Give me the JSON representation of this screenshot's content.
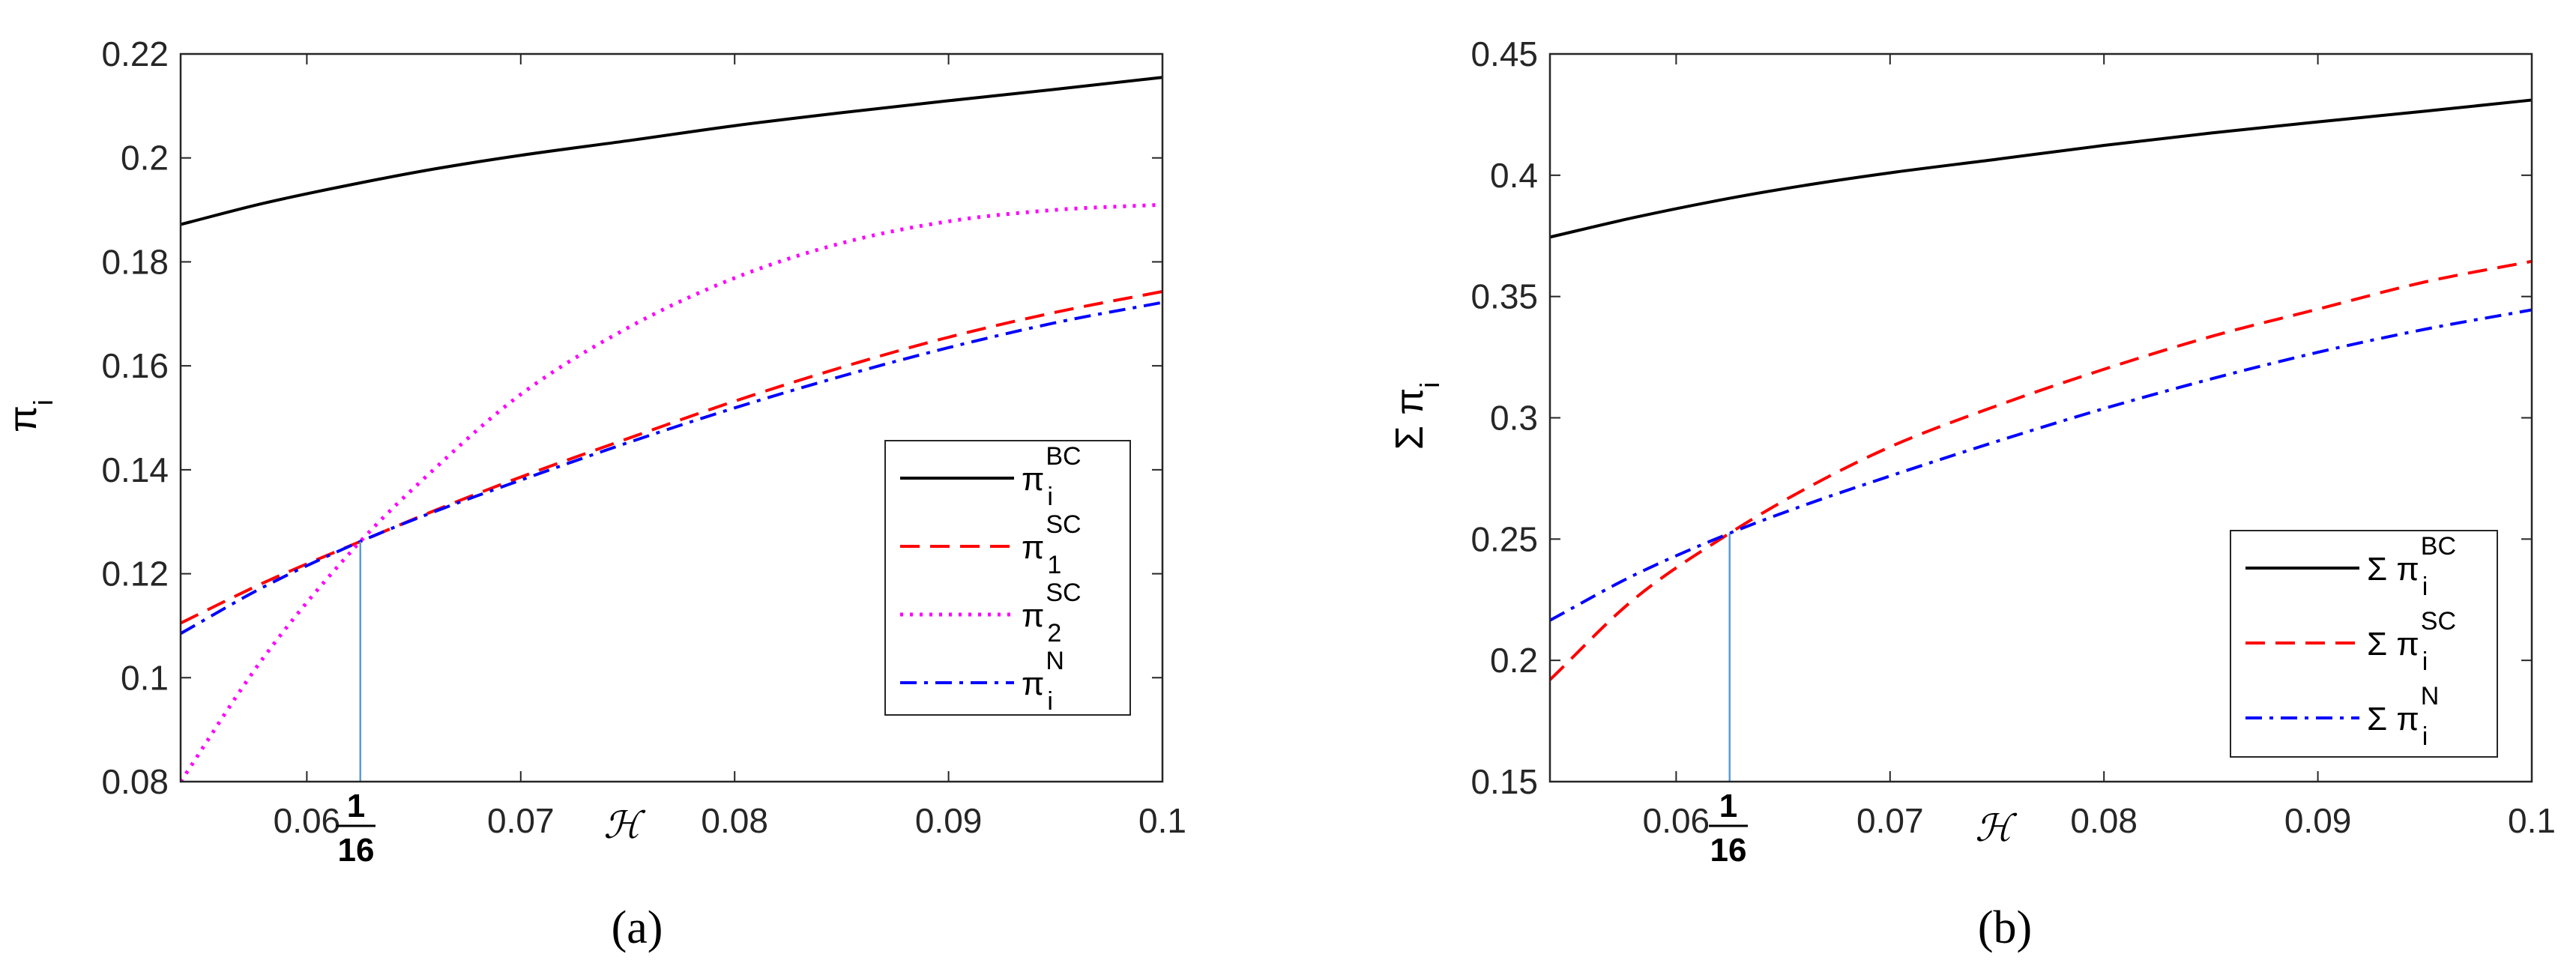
{
  "figure": {
    "captions": [
      "(a)",
      "(b)"
    ],
    "caption_bold_letters": [
      "a",
      "b"
    ]
  },
  "chart_data": [
    {
      "type": "line",
      "panel_label": "a",
      "title": "",
      "xlabel": "ℋ",
      "ylabel": "π",
      "ylabel_sub": "i",
      "xlim": [
        0.0541,
        0.1
      ],
      "ylim": [
        0.08,
        0.22
      ],
      "x_ticks": [
        0.06,
        0.07,
        0.08,
        0.09,
        0.1
      ],
      "x_tick_labels": [
        "0.06",
        "0.07",
        "0.08",
        "0.09",
        "0.1"
      ],
      "y_ticks": [
        0.08,
        0.1,
        0.12,
        0.14,
        0.16,
        0.18,
        0.2,
        0.22
      ],
      "y_tick_labels": [
        "0.08",
        "0.1",
        "0.12",
        "0.14",
        "0.16",
        "0.18",
        "0.2",
        "0.22"
      ],
      "marker_line": {
        "x": 0.0625,
        "label_num": "1",
        "label_den": "16"
      },
      "x": [
        0.0541,
        0.058,
        0.0625,
        0.066,
        0.07,
        0.075,
        0.08,
        0.085,
        0.09,
        0.095,
        0.1
      ],
      "series": [
        {
          "name": "π_i^BC",
          "legend_base": "π",
          "legend_sup": "BC",
          "legend_sub": "i",
          "color": "#000000",
          "style": "solid",
          "values": [
            0.1872,
            0.1913,
            0.1952,
            0.1979,
            0.2005,
            0.2033,
            0.2062,
            0.2087,
            0.211,
            0.2132,
            0.2155
          ]
        },
        {
          "name": "π_1^SC",
          "legend_base": "π",
          "legend_sup": "SC",
          "legend_sub": "1",
          "color": "#ff0000",
          "style": "dashed",
          "values": [
            0.1105,
            0.1183,
            0.1262,
            0.1322,
            0.1386,
            0.146,
            0.1532,
            0.1597,
            0.1655,
            0.1703,
            0.1743
          ]
        },
        {
          "name": "π_2^SC",
          "legend_base": "π",
          "legend_sup": "SC",
          "legend_sub": "2",
          "color": "#ff00ff",
          "style": "dotted",
          "values": [
            0.08,
            0.104,
            0.1262,
            0.1403,
            0.1545,
            0.1673,
            0.1769,
            0.1836,
            0.1878,
            0.19,
            0.191
          ]
        },
        {
          "name": "π_i^N",
          "legend_base": "π",
          "legend_sup": "N",
          "legend_sub": "i",
          "color": "#0000ff",
          "style": "dashdot",
          "values": [
            0.1085,
            0.1175,
            0.1262,
            0.132,
            0.138,
            0.1452,
            0.1519,
            0.158,
            0.1635,
            0.1683,
            0.1722
          ]
        }
      ],
      "legend_position": "lower-right"
    },
    {
      "type": "line",
      "panel_label": "b",
      "title": "",
      "xlabel": "ℋ",
      "ylabel": "Σ π",
      "ylabel_sub": "i",
      "xlim": [
        0.0541,
        0.1
      ],
      "ylim": [
        0.15,
        0.45
      ],
      "x_ticks": [
        0.06,
        0.07,
        0.08,
        0.09,
        0.1
      ],
      "x_tick_labels": [
        "0.06",
        "0.07",
        "0.08",
        "0.09",
        "0.1"
      ],
      "y_ticks": [
        0.15,
        0.2,
        0.25,
        0.3,
        0.35,
        0.4,
        0.45
      ],
      "y_tick_labels": [
        "0.15",
        "0.2",
        "0.25",
        "0.3",
        "0.35",
        "0.4",
        "0.45"
      ],
      "marker_line": {
        "x": 0.0625,
        "label_num": "1",
        "label_den": "16"
      },
      "x": [
        0.0541,
        0.058,
        0.0625,
        0.066,
        0.07,
        0.075,
        0.08,
        0.085,
        0.09,
        0.095,
        0.1
      ],
      "series": [
        {
          "name": "Σ π_i^BC",
          "legend_base": "Σ  π",
          "legend_sup": "BC",
          "legend_sub": "i",
          "color": "#000000",
          "style": "solid",
          "values": [
            0.3745,
            0.3825,
            0.3905,
            0.3958,
            0.401,
            0.4066,
            0.4123,
            0.4174,
            0.422,
            0.4264,
            0.431
          ]
        },
        {
          "name": "Σ π_i^SC",
          "legend_base": "Σ  π",
          "legend_sup": "SC",
          "legend_sub": "i",
          "color": "#ff0000",
          "style": "dashed",
          "values": [
            0.192,
            0.225,
            0.2524,
            0.2705,
            0.288,
            0.305,
            0.32,
            0.3335,
            0.3448,
            0.356,
            0.3645
          ]
        },
        {
          "name": "Σ π_i^N",
          "legend_base": "Σ  π",
          "legend_sup": "N",
          "legend_sub": "i",
          "color": "#0000ff",
          "style": "dashdot",
          "values": [
            0.2165,
            0.235,
            0.2524,
            0.264,
            0.276,
            0.2903,
            0.3038,
            0.316,
            0.327,
            0.3365,
            0.3445
          ]
        }
      ],
      "legend_position": "lower-right"
    }
  ]
}
